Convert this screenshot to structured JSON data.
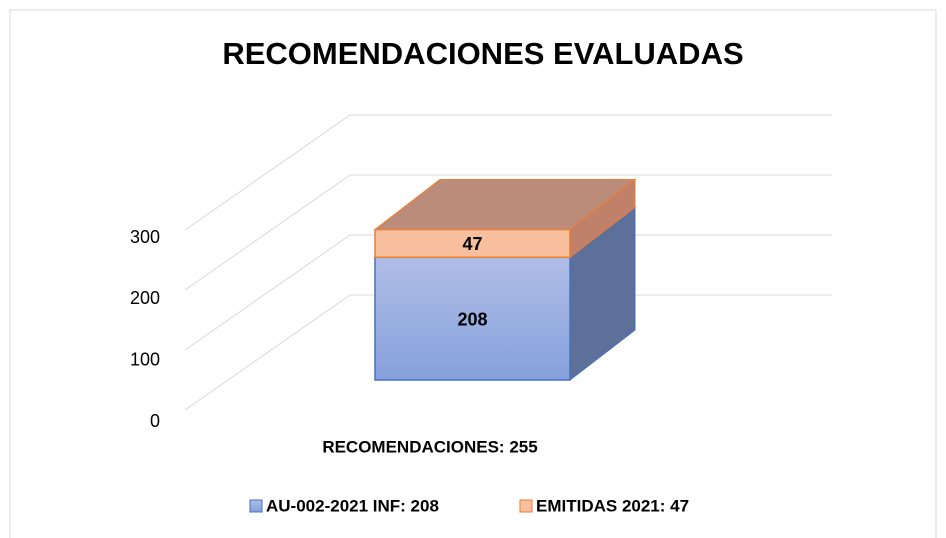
{
  "chart_data": {
    "type": "bar3d_stacked",
    "title": "RECOMENDACIONES EVALUADAS",
    "categories": [
      "RECOMENDACIONES: 255"
    ],
    "series": [
      {
        "name": "AU-002-2021 INF: 208",
        "color": "#8fa5dd",
        "values": [
          208
        ]
      },
      {
        "name": "EMITIDAS 2021: 47",
        "color": "#f8bf9f",
        "values": [
          47
        ]
      }
    ],
    "ylim": [
      0,
      300
    ],
    "yticks": [
      0,
      100,
      200,
      300
    ],
    "grid": true,
    "legend": "bottom"
  }
}
